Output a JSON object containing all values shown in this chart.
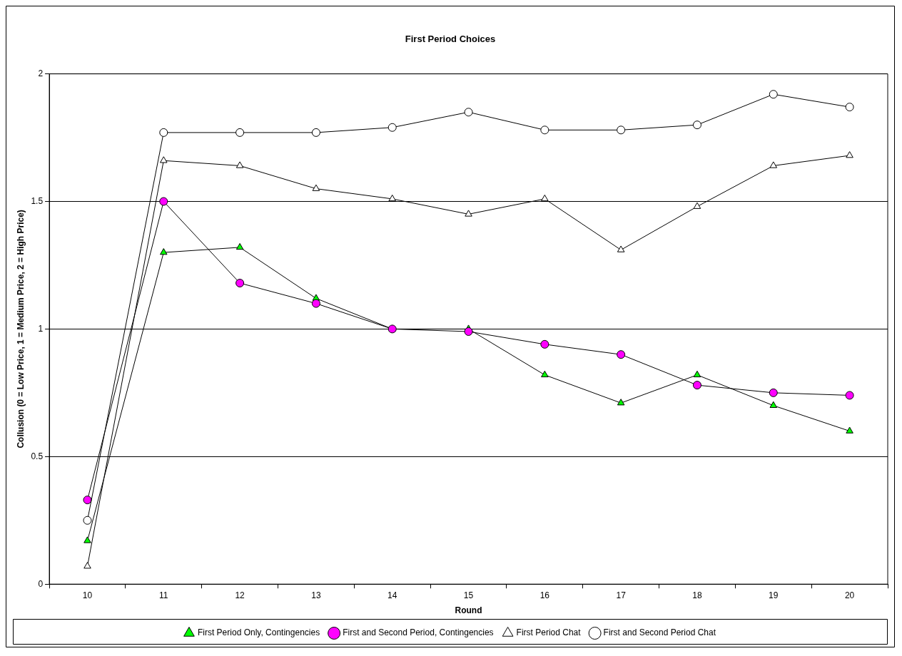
{
  "chart_data": {
    "type": "line",
    "title": "First Period Choices",
    "xlabel": "Round",
    "ylabel": "Collusion (0 = Low Price, 1 = Medium Price, 2 = High Price)",
    "categories": [
      "10",
      "11",
      "12",
      "13",
      "14",
      "15",
      "16",
      "17",
      "18",
      "19",
      "20"
    ],
    "series": [
      {
        "name": "First Period Only, Contingencies",
        "color": "#00ff00",
        "marker": "triangle",
        "values": [
          0.17,
          1.3,
          1.32,
          1.12,
          1.0,
          1.0,
          0.82,
          0.71,
          0.82,
          0.7,
          0.6
        ]
      },
      {
        "name": "First and Second Period, Contingencies",
        "color": "#ff00ff",
        "marker": "circle",
        "values": [
          0.33,
          1.5,
          1.18,
          1.1,
          1.0,
          0.99,
          0.94,
          0.9,
          0.78,
          0.75,
          0.74
        ]
      },
      {
        "name": "First Period Chat",
        "color": "#ffffff",
        "marker": "triangle",
        "values": [
          0.07,
          1.66,
          1.64,
          1.55,
          1.51,
          1.45,
          1.51,
          1.31,
          1.48,
          1.64,
          1.68
        ]
      },
      {
        "name": "First and Second Period Chat",
        "color": "#ffffff",
        "marker": "circle",
        "values": [
          0.25,
          1.77,
          1.77,
          1.77,
          1.79,
          1.85,
          1.78,
          1.78,
          1.8,
          1.92,
          1.87
        ]
      }
    ],
    "ylim": [
      0,
      2
    ],
    "yticks": [
      0,
      0.5,
      1,
      1.5,
      2
    ],
    "grid": "y",
    "legend": "bottom",
    "line_style": "solid"
  }
}
